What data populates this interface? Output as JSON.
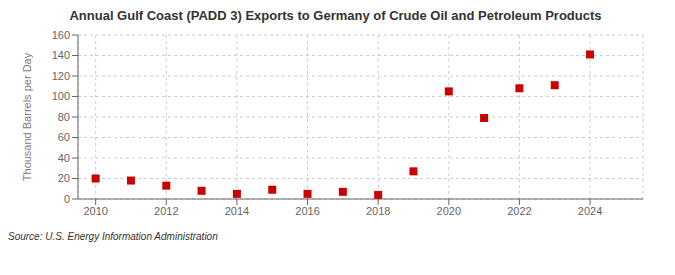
{
  "chart_data": {
    "type": "scatter",
    "title": "Annual Gulf Coast (PADD 3) Exports to Germany of Crude Oil and Petroleum Products",
    "ylabel": "Thousand Barrels per Day",
    "source": "Source: U.S. Energy Information Administration",
    "x": [
      2010,
      2011,
      2012,
      2013,
      2014,
      2015,
      2016,
      2017,
      2018,
      2019,
      2020,
      2021,
      2022,
      2023,
      2024
    ],
    "values": [
      20,
      18,
      13,
      8,
      5,
      9,
      5,
      7,
      4,
      27,
      105,
      79,
      108,
      111,
      141
    ],
    "color": "#cc0000",
    "marker": "square",
    "xlim": [
      2009.5,
      2025.5
    ],
    "ylim": [
      0,
      160
    ],
    "xticks": [
      2010,
      2012,
      2014,
      2016,
      2018,
      2020,
      2022,
      2024
    ],
    "yticks": [
      0,
      20,
      40,
      60,
      80,
      100,
      120,
      140,
      160
    ],
    "grid": true
  }
}
